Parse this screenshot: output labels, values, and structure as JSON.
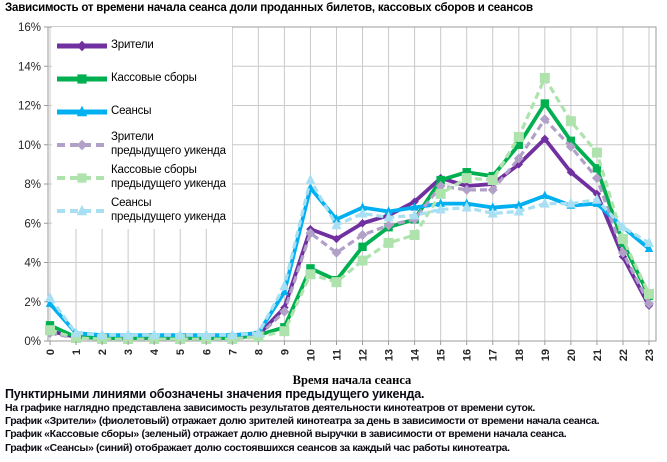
{
  "title": "Зависимость от времени начала сеанса доли проданных билетов, кассовых сборов и сеансов",
  "footnote": {
    "bold_line": "Пунктирными линиями обозначены значения предыдущего уикенда.",
    "lines": [
      "На графике наглядно представлена зависимость результатов деятельности кинотеатров от времени суток.",
      "График «Зрители» (фиолетовый) отражает долю зрителей кинотеатра за день в зависимости от времени начала сеанса.",
      "График «Кассовые сборы» (зеленый) отражает долю дневной выручки в зависимости от времени начала сеанса.",
      "График «Сеансы» (синий) отображает долю состоявшихся сеансов за каждый час работы кинотеатра."
    ]
  },
  "chart_data": {
    "type": "line",
    "xlabel": "Время начала сеанса",
    "ylabel": "",
    "x": [
      0,
      1,
      2,
      3,
      4,
      5,
      6,
      7,
      8,
      9,
      10,
      11,
      12,
      13,
      14,
      15,
      16,
      17,
      18,
      19,
      20,
      21,
      22,
      23
    ],
    "ylim_percent": [
      0,
      16
    ],
    "ytick_step_percent": 2,
    "ytick_labels": [
      "0%",
      "2%",
      "4%",
      "6%",
      "8%",
      "10%",
      "12%",
      "14%",
      "16%"
    ],
    "grid": true,
    "legend_position": "top-left",
    "colors": {
      "grid": "#c9c9c9",
      "axis": "#9b9b9b",
      "viewers": "#7030A0",
      "box_office": "#00B050",
      "sessions": "#00B0F0",
      "viewers_prev": "#B1A0C7",
      "box_office_prev": "#AEE3AE",
      "sessions_prev": "#A8DFF2"
    },
    "series": [
      {
        "id": "viewers",
        "name": "Зрители",
        "color": "#7030A0",
        "style": "solid",
        "marker": "diamond",
        "values": [
          0.5,
          0.2,
          0.15,
          0.15,
          0.15,
          0.15,
          0.15,
          0.15,
          0.3,
          1.7,
          5.7,
          5.2,
          6.0,
          6.4,
          7.1,
          8.3,
          7.9,
          8.0,
          9.0,
          10.3,
          8.6,
          7.5,
          4.3,
          1.8
        ]
      },
      {
        "id": "box_office",
        "name": "Кассовые сборы",
        "color": "#00B050",
        "style": "solid",
        "marker": "square",
        "values": [
          0.8,
          0.2,
          0.15,
          0.15,
          0.15,
          0.15,
          0.15,
          0.15,
          0.3,
          0.7,
          3.7,
          3.1,
          4.8,
          5.8,
          6.2,
          8.2,
          8.6,
          8.4,
          10.0,
          12.1,
          10.2,
          8.8,
          5.0,
          2.3
        ]
      },
      {
        "id": "sessions",
        "name": "Сеансы",
        "color": "#00B0F0",
        "style": "solid",
        "marker": "triangle",
        "values": [
          1.9,
          0.4,
          0.3,
          0.3,
          0.3,
          0.3,
          0.3,
          0.3,
          0.4,
          2.5,
          7.8,
          6.2,
          6.8,
          6.6,
          6.8,
          7.0,
          7.0,
          6.8,
          6.9,
          7.4,
          6.9,
          7.0,
          5.8,
          4.7
        ]
      },
      {
        "id": "viewers_prev",
        "name": "Зрители\nпредыдущего уикенда",
        "color": "#B1A0C7",
        "style": "dashed",
        "marker": "diamond",
        "values": [
          0.4,
          0.15,
          0.1,
          0.1,
          0.1,
          0.1,
          0.1,
          0.1,
          0.25,
          1.5,
          5.5,
          4.5,
          5.4,
          5.9,
          6.2,
          7.9,
          7.7,
          7.7,
          9.3,
          11.3,
          9.9,
          8.3,
          4.5,
          1.9
        ]
      },
      {
        "id": "box_office_prev",
        "name": "Кассовые сборы\nпредыдущего уикенда",
        "color": "#AEE3AE",
        "style": "dashed",
        "marker": "square",
        "values": [
          0.55,
          0.15,
          0.1,
          0.1,
          0.1,
          0.1,
          0.1,
          0.1,
          0.2,
          0.5,
          3.4,
          3.0,
          4.1,
          5.0,
          5.4,
          7.5,
          8.3,
          8.2,
          10.4,
          13.4,
          11.2,
          9.6,
          5.2,
          2.4
        ]
      },
      {
        "id": "sessions_prev",
        "name": "Сеансы\nпредыдущего уикенда",
        "color": "#A8DFF2",
        "style": "dashed",
        "marker": "triangle",
        "values": [
          2.2,
          0.4,
          0.3,
          0.3,
          0.3,
          0.3,
          0.3,
          0.3,
          0.4,
          2.8,
          8.2,
          5.9,
          6.5,
          6.3,
          6.4,
          6.7,
          6.8,
          6.5,
          6.6,
          7.0,
          7.0,
          7.2,
          5.8,
          5.0
        ]
      }
    ]
  }
}
